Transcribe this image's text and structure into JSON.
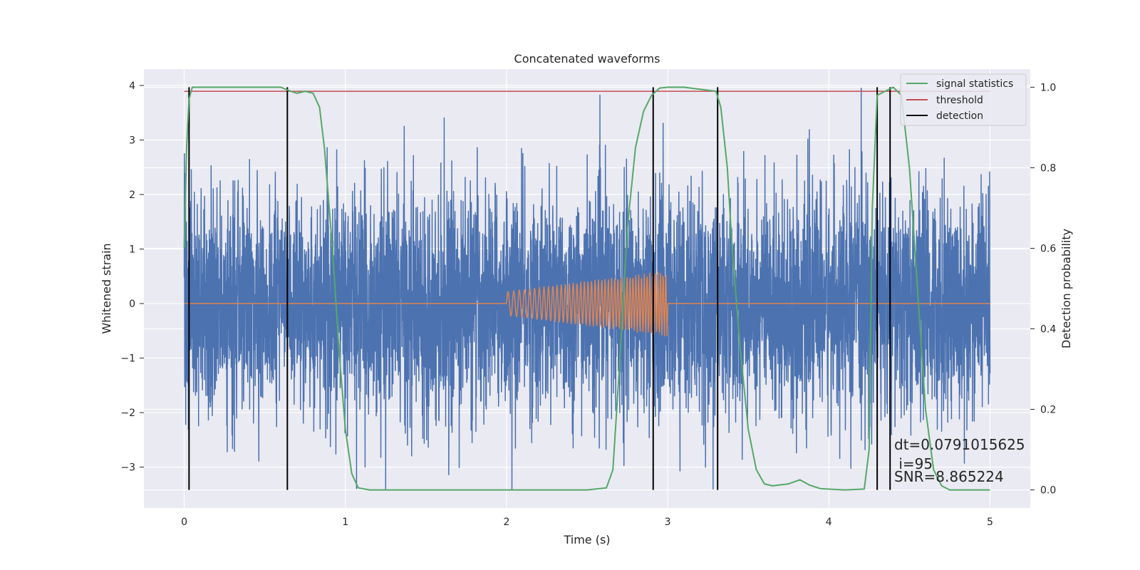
{
  "chart_data": {
    "type": "line",
    "title": "Concatenated waveforms",
    "xlabel": "Time (s)",
    "ylabel_left": "Whitened strain",
    "ylabel_right": "Detection probability",
    "xlim": [
      -0.25,
      5.25
    ],
    "ylim_left": [
      -3.75,
      4.3
    ],
    "ylim_right": [
      -0.045,
      1.045
    ],
    "x_ticks": [
      0,
      1,
      2,
      3,
      4,
      5
    ],
    "x_tick_labels": [
      "0",
      "1",
      "2",
      "3",
      "4",
      "5"
    ],
    "y_left_ticks": [
      -3,
      -2,
      -1,
      0,
      1,
      2,
      3,
      4
    ],
    "y_left_tick_labels": [
      "−3",
      "−2",
      "−1",
      "0",
      "1",
      "2",
      "3",
      "4"
    ],
    "y_right_ticks": [
      0.0,
      0.2,
      0.4,
      0.6,
      0.8,
      1.0
    ],
    "y_right_tick_labels": [
      "0.0",
      "0.2",
      "0.4",
      "0.6",
      "0.8",
      "1.0"
    ],
    "grid": true,
    "legend_position": "top-right",
    "legend": [
      {
        "label": "signal statistics",
        "color": "#55a868"
      },
      {
        "label": "threshold",
        "color": "#c44e52"
      },
      {
        "label": "detection",
        "color": "#000000"
      }
    ],
    "strain_series": {
      "color": "#4c72b0",
      "x_range": [
        0,
        5
      ],
      "typical_amplitude": 1.0,
      "max": 3.95,
      "min": -3.4
    },
    "injected_waveform": {
      "color": "#dd8452",
      "x_range": [
        0,
        5
      ],
      "chirp_start": 2.0,
      "chirp_end": 3.0,
      "amplitude_start": 0.22,
      "amplitude_end": 0.6,
      "cycles": 45
    },
    "signal_statistics": {
      "color": "#55a868",
      "x": [
        0.0,
        0.015,
        0.03,
        0.05,
        0.1,
        0.3,
        0.6,
        0.66,
        0.7,
        0.75,
        0.8,
        0.84,
        0.87,
        0.92,
        0.96,
        1.0,
        1.04,
        1.08,
        1.15,
        1.5,
        2.0,
        2.5,
        2.62,
        2.66,
        2.7,
        2.75,
        2.8,
        2.85,
        2.9,
        2.95,
        3.0,
        3.1,
        3.3,
        3.33,
        3.37,
        3.4,
        3.45,
        3.5,
        3.55,
        3.6,
        3.65,
        3.75,
        3.82,
        3.88,
        3.95,
        4.1,
        4.22,
        4.25,
        4.27,
        4.3,
        4.4,
        4.45,
        4.5,
        4.55,
        4.6,
        4.65,
        4.7,
        4.75,
        5.0
      ],
      "y": [
        0.6,
        0.85,
        0.97,
        1.0,
        1.0,
        1.0,
        1.0,
        0.99,
        0.985,
        0.99,
        0.985,
        0.95,
        0.85,
        0.6,
        0.35,
        0.15,
        0.04,
        0.005,
        0.0,
        0.0,
        0.0,
        0.0,
        0.005,
        0.05,
        0.3,
        0.65,
        0.85,
        0.94,
        0.98,
        0.998,
        1.0,
        1.0,
        0.99,
        0.95,
        0.8,
        0.6,
        0.35,
        0.15,
        0.05,
        0.015,
        0.01,
        0.015,
        0.025,
        0.012,
        0.003,
        0.0,
        0.002,
        0.1,
        0.7,
        0.98,
        1.0,
        0.98,
        0.8,
        0.5,
        0.2,
        0.05,
        0.01,
        0.0,
        0.0
      ]
    },
    "threshold": {
      "color": "#c44e52",
      "value": 0.99,
      "x_range": [
        0,
        5
      ]
    },
    "detections": {
      "color": "#000000",
      "x": [
        0.03,
        0.64,
        2.91,
        3.31,
        4.3,
        4.38
      ]
    },
    "annotations": [
      "dt=0.0791015625",
      " i=95",
      "SNR=8.865224"
    ]
  }
}
